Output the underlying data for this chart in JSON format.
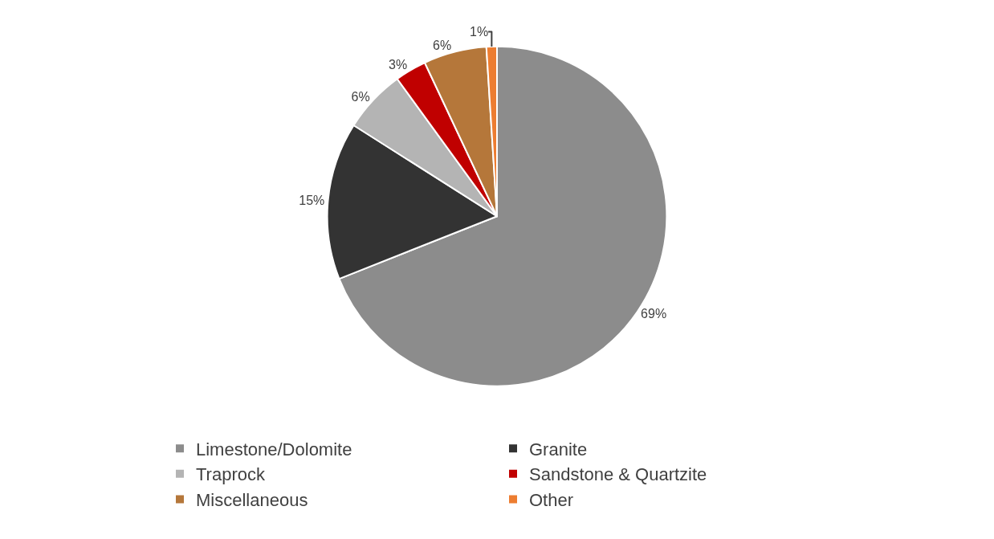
{
  "chart_data": {
    "type": "pie",
    "categories": [
      "Limestone/Dolomite",
      "Granite",
      "Traprock",
      "Sandstone & Quartzite",
      "Miscellaneous",
      "Other"
    ],
    "values": [
      69,
      15,
      6,
      3,
      6,
      1
    ],
    "value_labels": [
      "69%",
      "15%",
      "6%",
      "3%",
      "6%",
      "1%"
    ],
    "colors": [
      "#8c8c8c",
      "#333333",
      "#b4b4b4",
      "#c00000",
      "#b5773a",
      "#ed7d31"
    ],
    "legend": "bottom"
  }
}
